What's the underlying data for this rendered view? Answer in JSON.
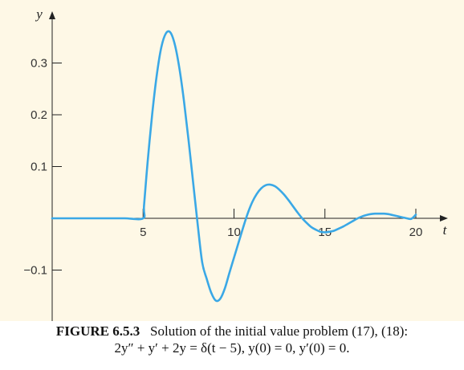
{
  "chart_data": {
    "type": "line",
    "title": "",
    "xlabel": "t",
    "ylabel": "y",
    "xlim": [
      0,
      21.5
    ],
    "ylim": [
      -0.2,
      0.4
    ],
    "xticks": [
      5,
      10,
      15,
      20
    ],
    "xtick_labels": [
      "5",
      "10",
      "15",
      "20"
    ],
    "yticks": [
      0.3,
      0.2,
      0.1,
      -0.1
    ],
    "ytick_labels": [
      "0.3",
      "0.2",
      "0.1",
      "−0.1"
    ],
    "grid": false,
    "legend": "none",
    "line_color": "#3aa8e6",
    "series": [
      {
        "x": [
          0,
          1,
          2,
          3,
          4,
          5,
          5.05,
          5.25,
          5.5,
          5.75,
          6.0,
          6.25,
          6.5,
          6.75,
          7.0,
          7.25,
          7.5,
          7.75,
          8.0,
          8.25,
          8.5,
          8.75,
          9.0,
          9.25,
          9.5,
          9.75,
          10.0,
          10.25,
          10.5,
          10.75,
          11.0,
          11.25,
          11.5,
          11.75,
          12.0,
          12.25,
          12.5,
          12.75,
          13.0,
          13.25,
          13.5,
          13.75,
          14.0,
          14.25,
          14.5,
          14.75,
          15.0,
          15.25,
          15.5,
          15.75,
          16.0,
          16.25,
          16.5,
          16.75,
          17.0,
          17.25,
          17.5,
          17.75,
          18.0,
          18.25,
          18.5,
          18.75,
          19.0,
          19.25,
          19.5,
          19.75,
          20.0
        ],
        "y": [
          0,
          0,
          0,
          0,
          0,
          0,
          0.024,
          0.109,
          0.201,
          0.276,
          0.33,
          0.357,
          0.359,
          0.335,
          0.289,
          0.226,
          0.151,
          0.07,
          -0.011,
          -0.085,
          -0.117,
          -0.144,
          -0.159,
          -0.155,
          -0.135,
          -0.105,
          -0.076,
          -0.047,
          -0.018,
          0.009,
          0.031,
          0.047,
          0.058,
          0.064,
          0.065,
          0.062,
          0.055,
          0.046,
          0.035,
          0.023,
          0.011,
          0.0,
          -0.009,
          -0.017,
          -0.022,
          -0.026,
          -0.027,
          -0.026,
          -0.024,
          -0.02,
          -0.016,
          -0.011,
          -0.006,
          -0.001,
          0.003,
          0.006,
          0.008,
          0.009,
          0.009,
          0.009,
          0.008,
          0.006,
          0.004,
          0.002,
          0.0,
          -0.001,
          0.007
        ]
      }
    ]
  },
  "caption": {
    "label": "FIGURE 6.5.3",
    "text": "Solution of the initial value problem (17), (18):",
    "equation": "2y″ + y′ + 2y = δ(t − 5),   y(0) = 0,   y′(0) = 0."
  }
}
